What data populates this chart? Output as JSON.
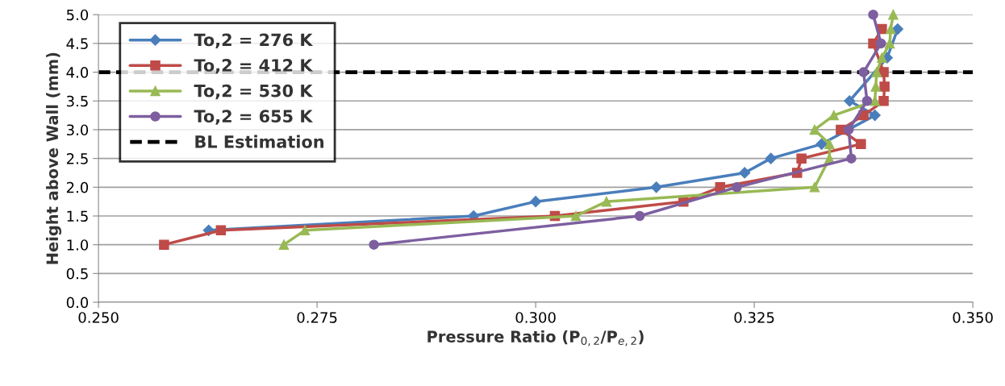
{
  "chart_data": {
    "type": "line",
    "xlabel": "Pressure Ratio (P$_{0,2}$/P$_{e,2}$)",
    "ylabel": "Height above Wall (mm)",
    "xlim": [
      0.25,
      0.35
    ],
    "xticks": [
      {
        "value": 0.25,
        "label": "0.250"
      },
      {
        "value": 0.275,
        "label": "0.275"
      },
      {
        "value": 0.3,
        "label": "0.300"
      },
      {
        "value": 0.325,
        "label": "0.325"
      },
      {
        "value": 0.35,
        "label": "0.350"
      }
    ],
    "ylim": [
      0,
      5
    ],
    "yticks": [
      {
        "value": 0,
        "label": "0.0"
      },
      {
        "value": 0.5,
        "label": "0.5"
      },
      {
        "value": 1,
        "label": "1.0"
      },
      {
        "value": 1.5,
        "label": "1.5"
      },
      {
        "value": 2,
        "label": "2.0"
      },
      {
        "value": 2.5,
        "label": "2.5"
      },
      {
        "value": 3,
        "label": "3.0"
      },
      {
        "value": 3.5,
        "label": "3.5"
      },
      {
        "value": 4,
        "label": "4.0"
      },
      {
        "value": 4.5,
        "label": "4.5"
      },
      {
        "value": 5,
        "label": "5.0"
      }
    ],
    "grid": "y",
    "legend": "top left",
    "series": [
      {
        "name": "To,2 = 276 K",
        "color": "#4a7ebb",
        "marker": "diamond",
        "x": [
          0.2626,
          0.2929,
          0.3,
          0.3138,
          0.3239,
          0.3269,
          0.3327,
          0.3388,
          0.3359,
          0.3402,
          0.3414
        ],
        "values": [
          1.25,
          1.5,
          1.75,
          2.0,
          2.25,
          2.5,
          2.75,
          3.25,
          3.5,
          4.25,
          4.75
        ]
      },
      {
        "name": "To,2 = 412 K",
        "color": "#be4b48",
        "marker": "square",
        "x": [
          0.2575,
          0.264,
          0.3022,
          0.3169,
          0.3211,
          0.3299,
          0.3304,
          0.3372,
          0.3349,
          0.3375,
          0.3398,
          0.3399,
          0.3398,
          0.3386,
          0.3396
        ],
        "values": [
          1.0,
          1.25,
          1.5,
          1.75,
          2.0,
          2.25,
          2.5,
          2.75,
          3.0,
          3.25,
          3.5,
          3.75,
          4.0,
          4.5,
          4.75
        ]
      },
      {
        "name": "To,2 = 530 K",
        "color": "#98b954",
        "marker": "triangle",
        "x": [
          0.2712,
          0.2736,
          0.3046,
          0.3081,
          0.3319,
          0.3336,
          0.3336,
          0.3319,
          0.3341,
          0.3388,
          0.3389,
          0.339,
          0.3396,
          0.3405,
          0.3406,
          0.3409
        ],
        "values": [
          1.0,
          1.25,
          1.5,
          1.75,
          2.0,
          2.5,
          2.75,
          3.0,
          3.25,
          3.5,
          3.75,
          4.0,
          4.25,
          4.5,
          4.75,
          5.0
        ]
      },
      {
        "name": "To,2 = 655 K",
        "color": "#7d5fa0",
        "marker": "circle",
        "x": [
          0.2815,
          0.3119,
          0.323,
          0.3361,
          0.3358,
          0.3379,
          0.3375,
          0.3395,
          0.3386
        ],
        "values": [
          1.0,
          1.5,
          2.0,
          2.5,
          3.0,
          3.5,
          4.0,
          4.5,
          5.0
        ]
      }
    ],
    "ref_lines": [
      {
        "axis": "y",
        "value": 4.0,
        "label": "BL Estimation",
        "color": "#000000",
        "line_style": "dashed"
      }
    ]
  }
}
